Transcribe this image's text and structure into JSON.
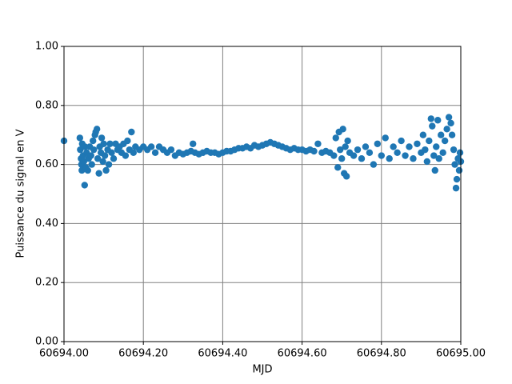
{
  "chart_data": {
    "type": "scatter",
    "xlabel": "MJD",
    "ylabel": "Puissance du signal en V",
    "color": "#1f77b4",
    "grid": true,
    "grid_color": "#808080",
    "xlim": [
      60694.0,
      60695.0
    ],
    "xticks": [
      {
        "value": 60694.0,
        "label": "60694.00"
      },
      {
        "value": 60694.2,
        "label": "60694.20"
      },
      {
        "value": 60694.4,
        "label": "60694.40"
      },
      {
        "value": 60694.6,
        "label": "60694.60"
      },
      {
        "value": 60694.8,
        "label": "60694.80"
      },
      {
        "value": 60695.0,
        "label": "60695.00"
      }
    ],
    "ylim": [
      0,
      1
    ],
    "yticks": [
      {
        "value": 0,
        "label": "0.00"
      },
      {
        "value": 0.2,
        "label": "0.20"
      },
      {
        "value": 0.4,
        "label": "0.40"
      },
      {
        "value": 0.6,
        "label": "0.60"
      },
      {
        "value": 0.8,
        "label": "0.80"
      },
      {
        "value": 1,
        "label": "1.00"
      }
    ],
    "x": [
      60694.0,
      60694.04,
      60694.041,
      60694.043,
      60694.044,
      60694.045,
      60694.046,
      60694.048,
      60694.05,
      60694.052,
      60694.053,
      60694.055,
      60694.057,
      60694.06,
      60694.062,
      60694.065,
      60694.068,
      60694.07,
      60694.073,
      60694.075,
      60694.078,
      60694.08,
      60694.083,
      60694.085,
      60694.088,
      60694.09,
      60694.093,
      60694.095,
      60694.098,
      60694.1,
      60694.103,
      60694.106,
      60694.11,
      60694.113,
      60694.116,
      60694.12,
      60694.125,
      60694.13,
      60694.135,
      60694.14,
      60694.145,
      60694.15,
      60694.155,
      60694.16,
      60694.165,
      60694.17,
      60694.175,
      60694.18,
      60694.19,
      60694.2,
      60694.21,
      60694.22,
      60694.23,
      60694.24,
      60694.25,
      60694.26,
      60694.27,
      60694.28,
      60694.29,
      60694.3,
      60694.31,
      60694.32,
      60694.325,
      60694.33,
      60694.34,
      60694.35,
      60694.36,
      60694.37,
      60694.38,
      60694.39,
      60694.4,
      60694.41,
      60694.42,
      60694.43,
      60694.44,
      60694.45,
      60694.46,
      60694.47,
      60694.48,
      60694.49,
      60694.5,
      60694.51,
      60694.52,
      60694.53,
      60694.54,
      60694.55,
      60694.56,
      60694.57,
      60694.58,
      60694.59,
      60694.6,
      60694.61,
      60694.62,
      60694.63,
      60694.64,
      60694.65,
      60694.66,
      60694.67,
      60694.68,
      60694.685,
      60694.69,
      60694.693,
      60694.696,
      60694.7,
      60694.703,
      60694.706,
      60694.709,
      60694.712,
      60694.715,
      60694.72,
      60694.73,
      60694.74,
      60694.75,
      60694.76,
      60694.77,
      60694.78,
      60694.79,
      60694.8,
      60694.81,
      60694.82,
      60694.83,
      60694.84,
      60694.85,
      60694.86,
      60694.87,
      60694.88,
      60694.89,
      60694.9,
      60694.905,
      60694.91,
      60694.915,
      60694.92,
      60694.925,
      60694.928,
      60694.932,
      60694.935,
      60694.938,
      60694.942,
      60694.945,
      60694.95,
      60694.955,
      60694.96,
      60694.965,
      60694.97,
      60694.975,
      60694.978,
      60694.982,
      60694.985,
      60694.988,
      60694.99,
      60694.993,
      60694.996,
      60694.998,
      60695.0
    ],
    "values": [
      0.68,
      0.69,
      0.65,
      0.62,
      0.6,
      0.58,
      0.67,
      0.63,
      0.61,
      0.53,
      0.66,
      0.59,
      0.64,
      0.58,
      0.62,
      0.66,
      0.63,
      0.6,
      0.68,
      0.65,
      0.7,
      0.71,
      0.72,
      0.62,
      0.57,
      0.66,
      0.64,
      0.69,
      0.61,
      0.67,
      0.63,
      0.58,
      0.65,
      0.6,
      0.67,
      0.64,
      0.62,
      0.67,
      0.65,
      0.66,
      0.64,
      0.67,
      0.63,
      0.68,
      0.65,
      0.71,
      0.64,
      0.66,
      0.65,
      0.66,
      0.65,
      0.66,
      0.64,
      0.66,
      0.65,
      0.64,
      0.65,
      0.63,
      0.64,
      0.635,
      0.64,
      0.645,
      0.67,
      0.64,
      0.635,
      0.64,
      0.645,
      0.64,
      0.64,
      0.635,
      0.64,
      0.645,
      0.645,
      0.65,
      0.655,
      0.655,
      0.66,
      0.655,
      0.665,
      0.66,
      0.665,
      0.67,
      0.675,
      0.67,
      0.665,
      0.66,
      0.655,
      0.65,
      0.655,
      0.65,
      0.65,
      0.645,
      0.65,
      0.645,
      0.67,
      0.64,
      0.645,
      0.64,
      0.63,
      0.69,
      0.59,
      0.71,
      0.65,
      0.62,
      0.72,
      0.57,
      0.66,
      0.56,
      0.68,
      0.64,
      0.63,
      0.65,
      0.62,
      0.66,
      0.64,
      0.6,
      0.67,
      0.63,
      0.69,
      0.62,
      0.66,
      0.64,
      0.68,
      0.63,
      0.66,
      0.62,
      0.67,
      0.64,
      0.7,
      0.65,
      0.61,
      0.68,
      0.755,
      0.73,
      0.63,
      0.58,
      0.66,
      0.75,
      0.62,
      0.7,
      0.64,
      0.68,
      0.72,
      0.76,
      0.74,
      0.7,
      0.65,
      0.6,
      0.52,
      0.55,
      0.62,
      0.58,
      0.64,
      0.61
    ]
  }
}
